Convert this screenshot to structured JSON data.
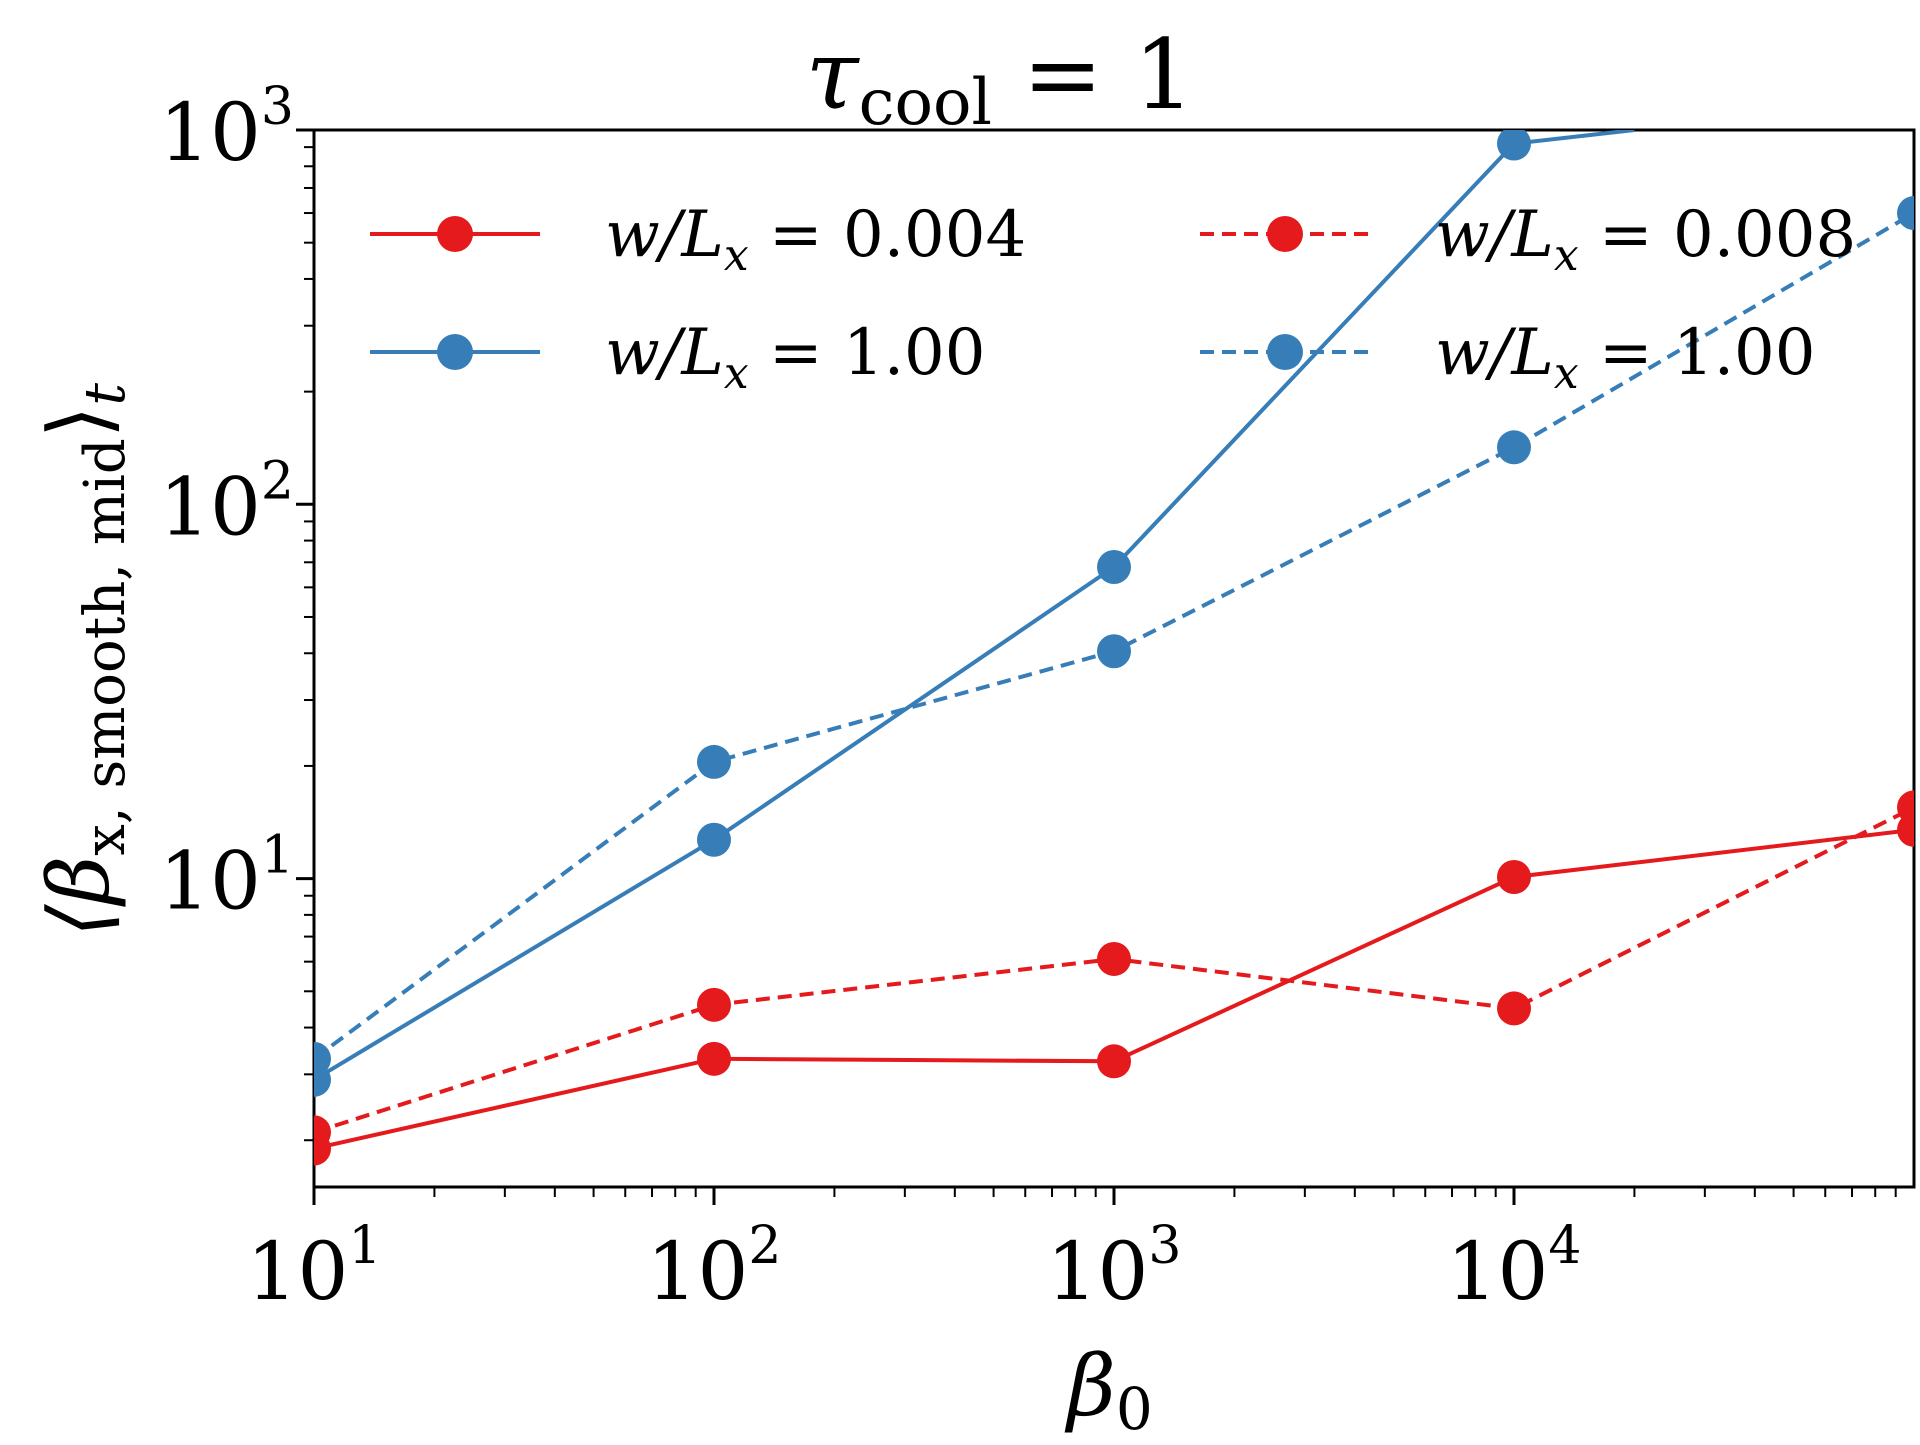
{
  "chart_data": {
    "type": "line",
    "title": "τ_cool = 1",
    "title_main": "τ",
    "title_sub": "cool",
    "title_rest": " = 1",
    "xlabel": "β0",
    "xlabel_main": "β",
    "xlabel_sub": "0",
    "ylabel": "⟨βx, smooth, mid⟩t",
    "ylabel_main": "⟨β",
    "ylabel_sub": "x, smooth, mid",
    "ylabel_close": "⟩",
    "ylabel_sub2": "t",
    "xscale": "log",
    "yscale": "log",
    "xlim": [
      10,
      100000
    ],
    "ylim": [
      1.5,
      1000
    ],
    "xticks": [
      {
        "value": 10,
        "base": "10",
        "exp": "1"
      },
      {
        "value": 100,
        "base": "10",
        "exp": "2"
      },
      {
        "value": 1000,
        "base": "10",
        "exp": "3"
      },
      {
        "value": 10000,
        "base": "10",
        "exp": "4"
      }
    ],
    "yticks": [
      {
        "value": 10,
        "base": "10",
        "exp": "1"
      },
      {
        "value": 100,
        "base": "10",
        "exp": "2"
      },
      {
        "value": 1000,
        "base": "10",
        "exp": "3"
      }
    ],
    "legend_position": "top, two columns",
    "series": [
      {
        "name": "w/Lx = 0.004",
        "label_text": "w/Lx = 0.004",
        "label_pre": "w/L",
        "label_sub": "x",
        "label_val": " = 0.004",
        "color": "#e41a1c",
        "linestyle": "solid",
        "x": [
          10,
          100,
          1000,
          10000,
          100000
        ],
        "y": [
          1.9,
          3.3,
          3.25,
          10.1,
          13.5
        ]
      },
      {
        "name": "w/Lx = 0.008",
        "label_text": "w/Lx = 0.008",
        "label_pre": "w/L",
        "label_sub": "x",
        "label_val": " = 0.008",
        "color": "#e41a1c",
        "linestyle": "dashed",
        "x": [
          10,
          100,
          1000,
          10000,
          100000
        ],
        "y": [
          2.1,
          4.6,
          6.1,
          4.5,
          15.5
        ]
      },
      {
        "name": "w/Lx = 1.00 (solid)",
        "label_text": "w/Lx = 1.00",
        "label_pre": "w/L",
        "label_sub": "x",
        "label_val": " = 1.00",
        "color": "#377eb8",
        "linestyle": "solid",
        "x": [
          10,
          100,
          1000,
          10000,
          20000
        ],
        "y": [
          2.9,
          12.7,
          68,
          920,
          1000
        ]
      },
      {
        "name": "w/Lx = 1.00 (dashed)",
        "label_text": "w/Lx = 1.00",
        "label_pre": "w/L",
        "label_sub": "x",
        "label_val": " = 1.00",
        "color": "#377eb8",
        "linestyle": "dashed",
        "x": [
          10,
          100,
          1000,
          10000,
          100000
        ],
        "y": [
          3.3,
          20.5,
          40.5,
          142,
          600
        ]
      }
    ]
  }
}
